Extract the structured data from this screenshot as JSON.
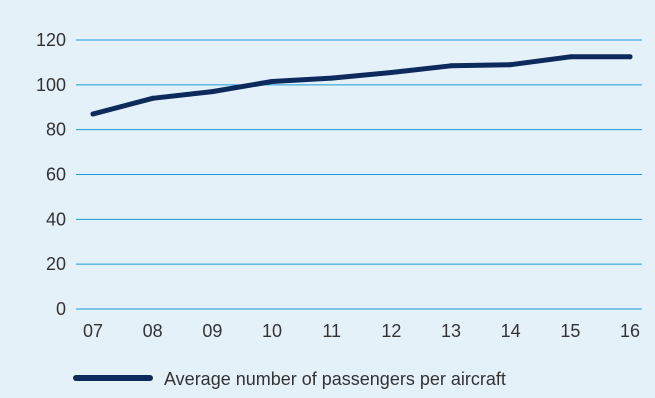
{
  "chart_data": {
    "type": "line",
    "title": "",
    "xlabel": "",
    "ylabel": "",
    "categories": [
      "07",
      "08",
      "09",
      "10",
      "11",
      "12",
      "13",
      "14",
      "15",
      "16"
    ],
    "series": [
      {
        "name": "Average number of passengers per aircraft",
        "values": [
          87,
          94,
          97,
          101.5,
          103,
          105.5,
          108.5,
          109,
          112.5,
          112.5
        ]
      }
    ],
    "ylim": [
      0,
      120
    ],
    "yticks": [
      0,
      20,
      40,
      60,
      80,
      100,
      120
    ],
    "grid": true,
    "legend_position": "bottom-left"
  },
  "colors": {
    "background": "#e5f1f9",
    "gridline": "#1a9ad6",
    "series": "#0d2a5c",
    "text": "#333333"
  }
}
